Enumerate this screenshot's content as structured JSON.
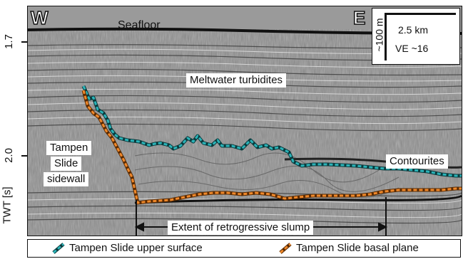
{
  "axis": {
    "label": "TWT [s]",
    "ticks": [
      "1.7",
      "2.0"
    ]
  },
  "orientation": {
    "west": "W",
    "east": "E"
  },
  "labels": {
    "seafloor": "Seafloor",
    "meltwater": "Meltwater turbidites",
    "contourites": "Contourites",
    "sidewall_line1": "Tampen",
    "sidewall_line2": "Slide",
    "sidewall_line3": "sidewall",
    "extent": "Extent of retrogressive slump"
  },
  "scale": {
    "vertical": "~100 m",
    "horizontal": "2.5 km",
    "ve": "VE ~16"
  },
  "legend": [
    {
      "name": "Tampen Slide upper surface",
      "color": "#2bb3b8"
    },
    {
      "name": "Tampen Slide basal plane",
      "color": "#f0892b"
    }
  ],
  "colors": {
    "upper_surface": "#2bb3b8",
    "basal_plane": "#f0892b",
    "seafloor": "#111111"
  }
}
